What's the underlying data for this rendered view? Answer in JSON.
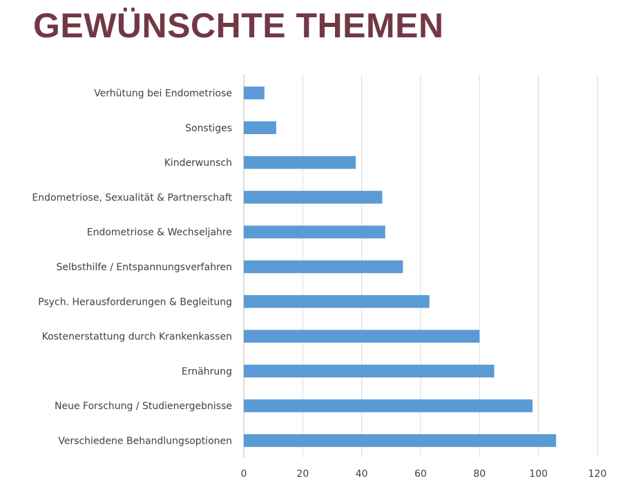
{
  "page": {
    "title": "GEWÜNSCHTE THEMEN"
  },
  "chart_data": {
    "type": "bar",
    "orientation": "horizontal",
    "title": "",
    "xlabel": "",
    "ylabel": "",
    "xlim": [
      0,
      120
    ],
    "xticks": [
      0,
      20,
      40,
      60,
      80,
      100,
      120
    ],
    "grid": true,
    "bar_color": "#5B9BD5",
    "categories": [
      "Verhütung bei Endometriose",
      "Sonstiges",
      "Kinderwunsch",
      "Endometriose, Sexualität & Partnerschaft",
      "Endometriose & Wechseljahre",
      "Selbsthilfe / Entspannungsverfahren",
      "Psych. Herausforderungen & Begleitung",
      "Kostenerstattung durch Krankenkassen",
      "Ernährung",
      "Neue Forschung / Studienergebnisse",
      "Verschiedene Behandlungsoptionen"
    ],
    "values": [
      7,
      11,
      38,
      47,
      48,
      54,
      63,
      80,
      85,
      98,
      106
    ]
  }
}
